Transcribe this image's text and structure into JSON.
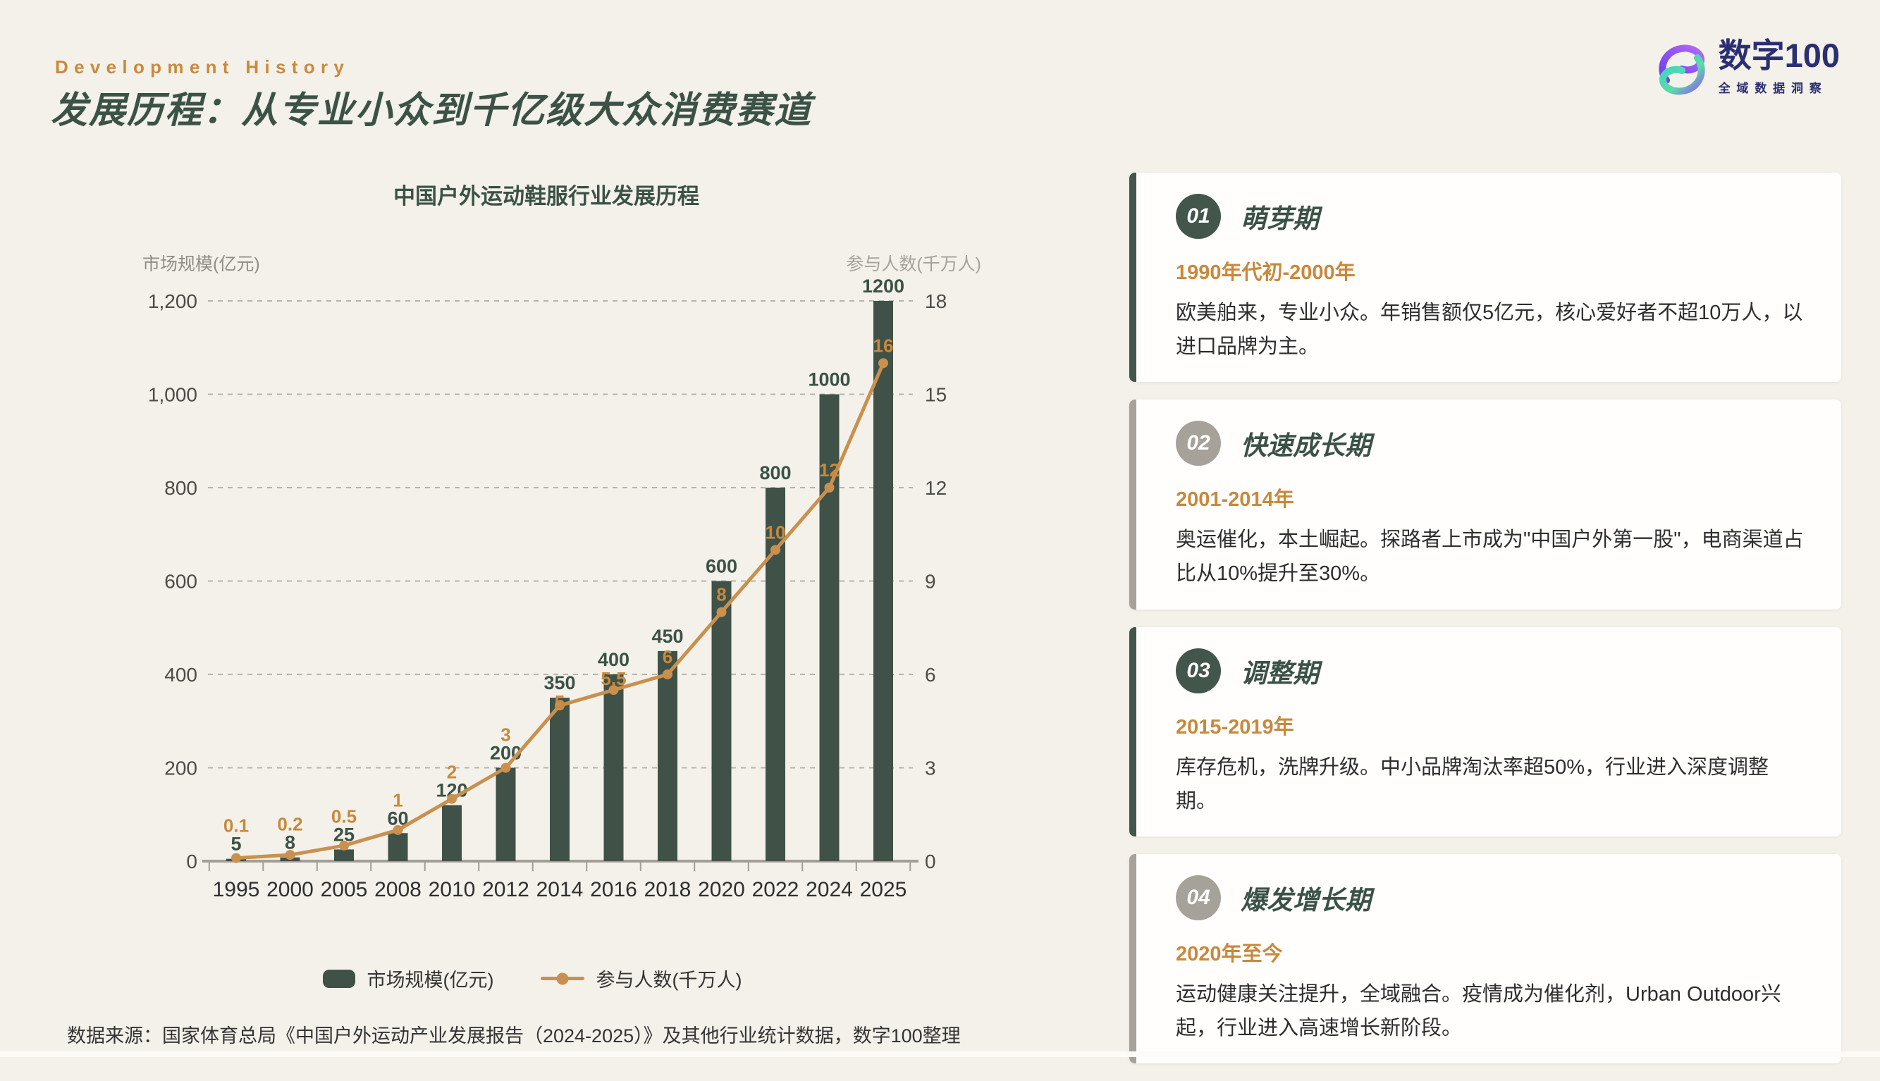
{
  "header": {
    "eyebrow": "Development History",
    "title": "发展历程：从专业小众到千亿级大众消费赛道"
  },
  "logo": {
    "name": "数字100",
    "tagline": "全域数据洞察"
  },
  "chart": {
    "title": "中国户外运动鞋服行业发展历程",
    "left_axis_label": "市场规模(亿元)",
    "right_axis_label": "参与人数(千万人)",
    "legend": [
      {
        "label": "市场规模(亿元)",
        "type": "bar"
      },
      {
        "label": "参与人数(千万人)",
        "type": "line"
      }
    ]
  },
  "chart_data": {
    "type": "bar",
    "title": "中国户外运动鞋服行业发展历程",
    "categories": [
      "1995",
      "2000",
      "2005",
      "2008",
      "2010",
      "2012",
      "2014",
      "2016",
      "2018",
      "2020",
      "2022",
      "2024",
      "2025"
    ],
    "series": [
      {
        "name": "市场规模(亿元)",
        "type": "bar",
        "axis": "left",
        "color": "#405248",
        "values": [
          5,
          8,
          25,
          60,
          120,
          200,
          350,
          400,
          450,
          600,
          800,
          1000,
          1200
        ]
      },
      {
        "name": "参与人数(千万人)",
        "type": "line",
        "axis": "right",
        "color": "#c9904e",
        "values": [
          0.1,
          0.2,
          0.5,
          1,
          2,
          3,
          5,
          5.5,
          6,
          8,
          10,
          12,
          16
        ]
      }
    ],
    "left_axis": {
      "label": "市场规模(亿元)",
      "min": 0,
      "max": 1200,
      "ticks": [
        "0",
        "200",
        "400",
        "600",
        "800",
        "1,000",
        "1,200"
      ]
    },
    "right_axis": {
      "label": "参与人数(千万人)",
      "min": 0,
      "max": 18,
      "ticks": [
        "0",
        "3",
        "6",
        "9",
        "12",
        "15",
        "18"
      ]
    },
    "grid": "dashed horizontal gridlines",
    "legend_position": "bottom",
    "bar_label_color": "#3b5246",
    "line_label_color": "#c8893c"
  },
  "timeline": {
    "cards": [
      {
        "num": "01",
        "accent": "green",
        "title": "萌芽期",
        "period": "1990年代初-2000年",
        "desc": "欧美舶来，专业小众。年销售额仅5亿元，核心爱好者不超10万人，以进口品牌为主。"
      },
      {
        "num": "02",
        "accent": "gray",
        "title": "快速成长期",
        "period": "2001-2014年",
        "desc": "奥运催化，本土崛起。探路者上市成为\"中国户外第一股\"，电商渠道占比从10%提升至30%。"
      },
      {
        "num": "03",
        "accent": "green",
        "title": "调整期",
        "period": "2015-2019年",
        "desc": "库存危机，洗牌升级。中小品牌淘汰率超50%，行业进入深度调整期。"
      },
      {
        "num": "04",
        "accent": "gray",
        "title": "爆发增长期",
        "period": "2020年至今",
        "desc": "运动健康关注提升，全域融合。疫情成为催化剂，Urban Outdoor兴起，行业进入高速增长新阶段。"
      }
    ]
  },
  "footer": {
    "source": "数据来源：国家体育总局《中国户外运动产业发展报告（2024-2025）》及其他行业统计数据，数字100整理"
  }
}
